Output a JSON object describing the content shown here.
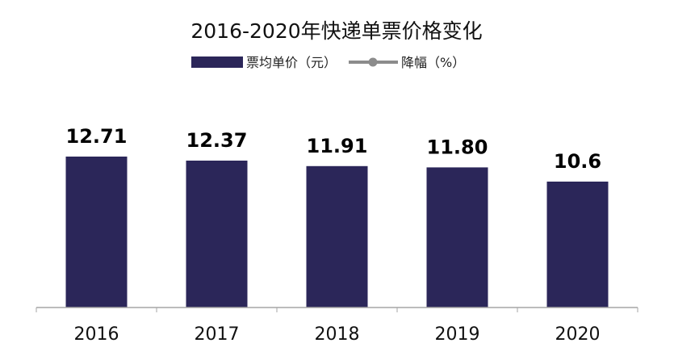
{
  "chart_data": {
    "type": "bar",
    "title": "2016-2020年快递单票价格变化",
    "categories": [
      "2016",
      "2017",
      "2018",
      "2019",
      "2020"
    ],
    "series": [
      {
        "name": "票均单价（元）",
        "values": [
          12.71,
          12.37,
          11.91,
          11.8,
          10.6
        ],
        "color": "#2b2659"
      }
    ],
    "data_labels": [
      "12.71",
      "12.37",
      "11.91",
      "11.80",
      "10.6"
    ],
    "legend": [
      {
        "label": "票均单价（元）",
        "marker": "bar",
        "color": "#2b2659"
      },
      {
        "label": "降幅（%）",
        "marker": "line",
        "color": "#8c8c8c"
      }
    ],
    "legend_position": "top",
    "ylim": [
      0,
      12.71
    ],
    "grid": false,
    "xlabel": "",
    "ylabel": ""
  }
}
